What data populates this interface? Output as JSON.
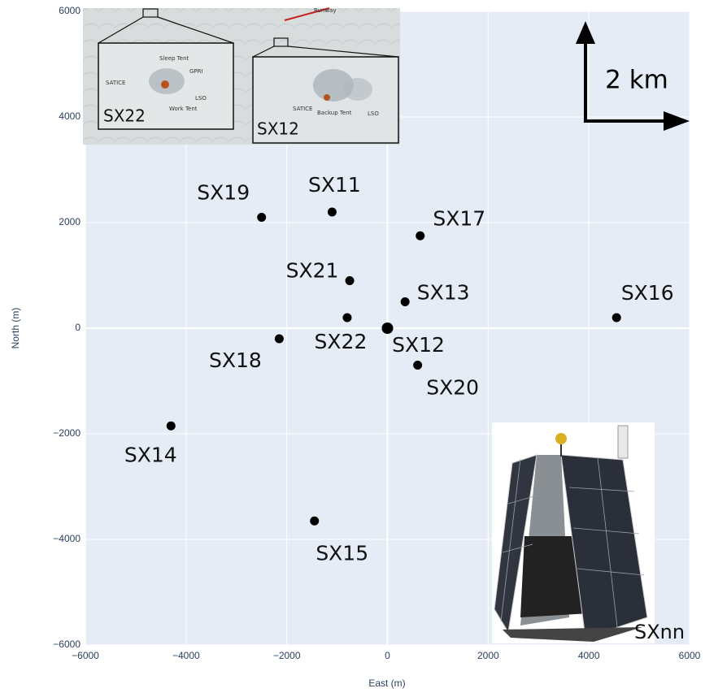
{
  "chart_data": {
    "type": "scatter",
    "x_label": "East (m)",
    "y_label": "North (m)",
    "x": [
      -2500,
      -1100,
      650,
      -750,
      350,
      4550,
      -800,
      0,
      -2150,
      600,
      -4300,
      -1450
    ],
    "values": [
      2100,
      2200,
      1750,
      900,
      500,
      200,
      200,
      0,
      -200,
      -700,
      -1850,
      -3650
    ],
    "point_labels": [
      "SX19",
      "SX11",
      "SX17",
      "SX21",
      "SX13",
      "SX16",
      "SX22",
      "SX12",
      "SX18",
      "SX20",
      "SX14",
      "SX15"
    ],
    "color": "#000000",
    "xlim": [
      -6000,
      6000
    ],
    "ylim": [
      -6000,
      6000
    ],
    "xticks": [
      {
        "value": -6000,
        "label": "−6000"
      },
      {
        "value": -4000,
        "label": "−4000"
      },
      {
        "value": -2000,
        "label": "−2000"
      },
      0,
      2000,
      4000,
      6000
    ],
    "yticks": [
      {
        "value": -6000,
        "label": "−6000"
      },
      {
        "value": -4000,
        "label": "−4000"
      },
      {
        "value": -2000,
        "label": "−2000"
      },
      0,
      2000,
      4000,
      6000
    ],
    "grid": true,
    "scale_label": "2 km",
    "inset_labels": [
      "SX22",
      "SX12",
      "SXnn"
    ],
    "inset_annotations": [
      "Runway",
      "Sleep Tent",
      "GPRI",
      "SATICE",
      "LSO",
      "Work Tent",
      "SATICE",
      "Backup Tent",
      "LSO"
    ]
  }
}
